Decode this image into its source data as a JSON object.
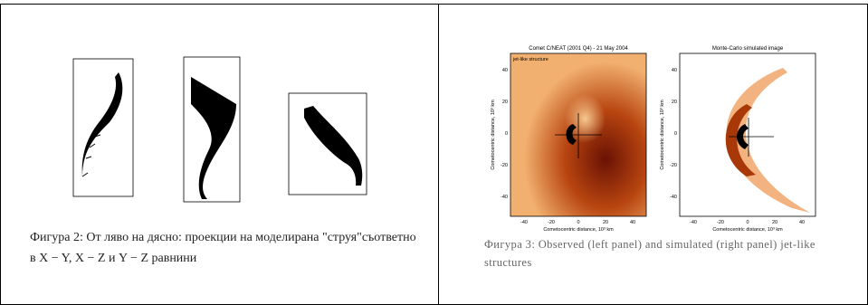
{
  "left_figure": {
    "caption_line1": "Фигура 2: От ляво на дясно: проекции на моделирана \"струя\"съответно",
    "caption_line2": "в X − Y, X − Z и Y − Z равнини"
  },
  "right_figure": {
    "panels": [
      {
        "title": "Comet C/NEAT (2001 Q4) - 21 May 2004",
        "label": "jet-like structure",
        "x_axis_label": "Cometocentric distance, 10³ km",
        "y_axis_label": "Cometocentric distance, 10³ km",
        "x_ticks": [
          "-40",
          "-20",
          "0",
          "20",
          "40"
        ],
        "y_ticks": [
          "40",
          "20",
          "0",
          "-20",
          "-40"
        ]
      },
      {
        "title": "Monte-Carlo simulated image",
        "x_axis_label": "Cometocentric distance, 10³ km",
        "y_axis_label": "Cometocentric distance, 10³ km",
        "x_ticks": [
          "-40",
          "-20",
          "0",
          "20",
          "40"
        ],
        "y_ticks": [
          "40",
          "20",
          "0",
          "-20",
          "-40"
        ]
      }
    ],
    "caption_line1": "Фигура 3: Observed (left panel) and simulated (right panel) jet-like",
    "caption_line2": "structures"
  }
}
